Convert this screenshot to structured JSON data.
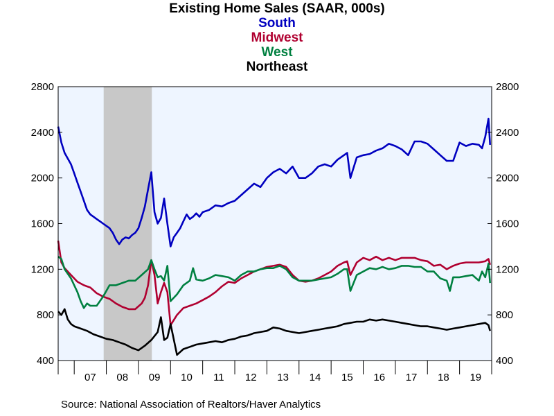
{
  "chart_data": {
    "type": "line",
    "title": "Existing Home Sales (SAAR, 000s)",
    "source": "Source:  National Association of Realtors/Haver Analytics",
    "x_tick_labels": [
      "07",
      "08",
      "09",
      "10",
      "11",
      "12",
      "13",
      "14",
      "15",
      "16",
      "17",
      "18",
      "19"
    ],
    "x_range": [
      2006.5,
      2020.0
    ],
    "ylim": [
      400,
      2800
    ],
    "y_ticks": [
      400,
      800,
      1200,
      1600,
      2000,
      2400,
      2800
    ],
    "y_ticks_right": [
      400,
      800,
      1200,
      1600,
      2000,
      2400,
      2800
    ],
    "recession_shading": [
      2007.917,
      2009.417
    ],
    "grid": false,
    "colors": {
      "plot_bg": "#eef5ff",
      "recession": "#c8c8c8"
    },
    "series": [
      {
        "name": "South",
        "color": "#0000c0",
        "x": [
          2006.5,
          2006.6,
          2006.7,
          2006.8,
          2006.9,
          2007.0,
          2007.1,
          2007.2,
          2007.3,
          2007.4,
          2007.5,
          2007.6,
          2007.7,
          2007.8,
          2007.9,
          2008.0,
          2008.1,
          2008.2,
          2008.3,
          2008.4,
          2008.5,
          2008.6,
          2008.7,
          2008.8,
          2008.9,
          2009.0,
          2009.1,
          2009.2,
          2009.3,
          2009.4,
          2009.5,
          2009.6,
          2009.7,
          2009.8,
          2009.9,
          2010.0,
          2010.1,
          2010.2,
          2010.3,
          2010.4,
          2010.5,
          2010.6,
          2010.7,
          2010.8,
          2010.9,
          2011.0,
          2011.2,
          2011.4,
          2011.6,
          2011.8,
          2012.0,
          2012.2,
          2012.4,
          2012.6,
          2012.8,
          2013.0,
          2013.2,
          2013.4,
          2013.6,
          2013.8,
          2014.0,
          2014.2,
          2014.4,
          2014.6,
          2014.8,
          2015.0,
          2015.2,
          2015.4,
          2015.5,
          2015.6,
          2015.8,
          2016.0,
          2016.2,
          2016.4,
          2016.6,
          2016.8,
          2017.0,
          2017.2,
          2017.4,
          2017.6,
          2017.8,
          2018.0,
          2018.2,
          2018.4,
          2018.6,
          2018.8,
          2019.0,
          2019.2,
          2019.4,
          2019.6,
          2019.7,
          2019.8,
          2019.9,
          2019.95
        ],
        "y": [
          2450,
          2310,
          2220,
          2170,
          2120,
          2040,
          1960,
          1880,
          1800,
          1720,
          1680,
          1660,
          1640,
          1620,
          1600,
          1580,
          1560,
          1520,
          1460,
          1420,
          1460,
          1480,
          1470,
          1500,
          1520,
          1560,
          1650,
          1750,
          1900,
          2050,
          1700,
          1600,
          1650,
          1820,
          1600,
          1400,
          1480,
          1520,
          1560,
          1620,
          1680,
          1640,
          1660,
          1690,
          1660,
          1700,
          1720,
          1760,
          1750,
          1780,
          1800,
          1850,
          1900,
          1950,
          1920,
          2000,
          2050,
          2080,
          2040,
          2100,
          2000,
          2000,
          2040,
          2100,
          2120,
          2100,
          2160,
          2200,
          2220,
          2000,
          2180,
          2200,
          2210,
          2240,
          2260,
          2300,
          2280,
          2250,
          2200,
          2320,
          2320,
          2300,
          2250,
          2200,
          2150,
          2150,
          2310,
          2280,
          2300,
          2290,
          2260,
          2360,
          2520,
          2290
        ]
      },
      {
        "name": "Midwest",
        "color": "#b00030",
        "x": [
          2006.5,
          2006.6,
          2006.7,
          2006.9,
          2007.1,
          2007.3,
          2007.5,
          2007.7,
          2007.9,
          2008.1,
          2008.3,
          2008.5,
          2008.7,
          2008.9,
          2009.1,
          2009.2,
          2009.3,
          2009.4,
          2009.5,
          2009.6,
          2009.7,
          2009.8,
          2009.9,
          2010.0,
          2010.2,
          2010.4,
          2010.6,
          2010.8,
          2011.0,
          2011.2,
          2011.4,
          2011.6,
          2011.8,
          2012.0,
          2012.2,
          2012.4,
          2012.6,
          2012.8,
          2013.0,
          2013.2,
          2013.4,
          2013.6,
          2013.8,
          2014.0,
          2014.2,
          2014.4,
          2014.6,
          2014.8,
          2015.0,
          2015.2,
          2015.4,
          2015.5,
          2015.6,
          2015.8,
          2016.0,
          2016.2,
          2016.4,
          2016.6,
          2016.8,
          2017.0,
          2017.2,
          2017.4,
          2017.6,
          2017.8,
          2018.0,
          2018.2,
          2018.4,
          2018.6,
          2018.8,
          2019.0,
          2019.2,
          2019.4,
          2019.6,
          2019.8,
          2019.9,
          2019.95
        ],
        "y": [
          1450,
          1260,
          1210,
          1150,
          1090,
          1060,
          1040,
          990,
          960,
          940,
          900,
          870,
          850,
          850,
          900,
          950,
          1060,
          1280,
          1150,
          900,
          1000,
          1080,
          1000,
          710,
          800,
          860,
          880,
          900,
          930,
          960,
          1000,
          1050,
          1090,
          1080,
          1120,
          1150,
          1180,
          1200,
          1220,
          1230,
          1240,
          1220,
          1150,
          1100,
          1090,
          1100,
          1120,
          1150,
          1180,
          1230,
          1260,
          1270,
          1150,
          1260,
          1300,
          1280,
          1310,
          1280,
          1300,
          1280,
          1300,
          1300,
          1300,
          1280,
          1270,
          1230,
          1240,
          1200,
          1230,
          1250,
          1260,
          1260,
          1260,
          1270,
          1290,
          1240
        ]
      },
      {
        "name": "West",
        "color": "#008040",
        "x": [
          2006.5,
          2006.6,
          2006.7,
          2006.9,
          2007.1,
          2007.2,
          2007.3,
          2007.4,
          2007.5,
          2007.7,
          2007.9,
          2008.1,
          2008.3,
          2008.5,
          2008.7,
          2008.9,
          2009.1,
          2009.3,
          2009.4,
          2009.5,
          2009.6,
          2009.7,
          2009.8,
          2009.9,
          2010.0,
          2010.2,
          2010.4,
          2010.6,
          2010.7,
          2010.8,
          2011.0,
          2011.2,
          2011.4,
          2011.6,
          2011.8,
          2012.0,
          2012.2,
          2012.4,
          2012.6,
          2012.8,
          2013.0,
          2013.2,
          2013.4,
          2013.6,
          2013.8,
          2014.0,
          2014.2,
          2014.4,
          2014.6,
          2014.8,
          2015.0,
          2015.2,
          2015.4,
          2015.5,
          2015.6,
          2015.8,
          2016.0,
          2016.2,
          2016.4,
          2016.6,
          2016.8,
          2017.0,
          2017.2,
          2017.4,
          2017.6,
          2017.8,
          2018.0,
          2018.2,
          2018.4,
          2018.6,
          2018.7,
          2018.8,
          2019.0,
          2019.2,
          2019.4,
          2019.6,
          2019.7,
          2019.8,
          2019.9,
          2019.95
        ],
        "y": [
          1310,
          1290,
          1200,
          1120,
          1000,
          920,
          860,
          900,
          880,
          880,
          960,
          1060,
          1060,
          1080,
          1100,
          1100,
          1150,
          1200,
          1280,
          1200,
          1130,
          1140,
          1100,
          1230,
          920,
          980,
          1060,
          1100,
          1210,
          1110,
          1100,
          1120,
          1150,
          1140,
          1130,
          1100,
          1150,
          1180,
          1180,
          1200,
          1210,
          1210,
          1230,
          1200,
          1130,
          1100,
          1100,
          1100,
          1110,
          1120,
          1130,
          1160,
          1200,
          1200,
          1010,
          1150,
          1180,
          1210,
          1200,
          1220,
          1200,
          1210,
          1230,
          1230,
          1220,
          1220,
          1180,
          1180,
          1120,
          1100,
          1010,
          1130,
          1130,
          1140,
          1150,
          1100,
          1180,
          1130,
          1250,
          1080
        ]
      },
      {
        "name": "Northeast",
        "color": "#000000",
        "x": [
          2006.5,
          2006.6,
          2006.7,
          2006.8,
          2006.9,
          2007.0,
          2007.2,
          2007.4,
          2007.6,
          2007.8,
          2008.0,
          2008.2,
          2008.4,
          2008.6,
          2008.8,
          2009.0,
          2009.2,
          2009.4,
          2009.6,
          2009.7,
          2009.8,
          2009.9,
          2010.0,
          2010.2,
          2010.4,
          2010.6,
          2010.8,
          2011.0,
          2011.2,
          2011.4,
          2011.6,
          2011.8,
          2012.0,
          2012.2,
          2012.4,
          2012.6,
          2012.8,
          2013.0,
          2013.2,
          2013.4,
          2013.6,
          2013.8,
          2014.0,
          2014.2,
          2014.4,
          2014.6,
          2014.8,
          2015.0,
          2015.2,
          2015.4,
          2015.6,
          2015.8,
          2016.0,
          2016.2,
          2016.4,
          2016.6,
          2016.8,
          2017.0,
          2017.2,
          2017.4,
          2017.6,
          2017.8,
          2018.0,
          2018.2,
          2018.4,
          2018.6,
          2018.8,
          2019.0,
          2019.2,
          2019.4,
          2019.6,
          2019.8,
          2019.9,
          2019.95
        ],
        "y": [
          830,
          800,
          850,
          760,
          720,
          700,
          680,
          660,
          630,
          610,
          590,
          580,
          560,
          540,
          510,
          490,
          530,
          580,
          650,
          780,
          580,
          600,
          720,
          450,
          500,
          520,
          540,
          550,
          560,
          570,
          560,
          580,
          590,
          610,
          620,
          640,
          650,
          660,
          690,
          680,
          660,
          650,
          640,
          650,
          660,
          670,
          680,
          690,
          700,
          720,
          730,
          740,
          740,
          760,
          750,
          760,
          750,
          740,
          730,
          720,
          710,
          700,
          700,
          690,
          680,
          670,
          680,
          690,
          700,
          710,
          720,
          730,
          710,
          660
        ]
      }
    ]
  }
}
